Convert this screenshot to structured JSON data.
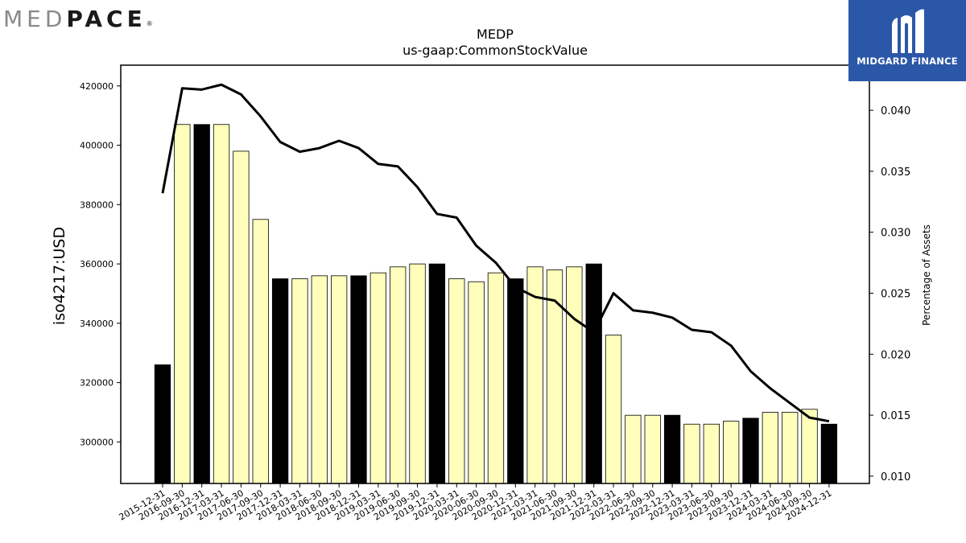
{
  "branding": {
    "left_logo_light": "MED",
    "left_logo_dark": "PACE",
    "left_logo_reg": "®",
    "right_logo_name": "MIDGARD FINANCE",
    "right_logo_bg": "#2b57a8"
  },
  "chart_data": {
    "type": "bar",
    "title": "MEDP",
    "subtitle": "us-gaap:CommonStockValue",
    "ylabel": "iso4217:USD",
    "y2label": "Percentage of Assets",
    "ylim": [
      286000,
      427000
    ],
    "y2lim": [
      0.0094,
      0.0437
    ],
    "yticks": [
      300000,
      320000,
      340000,
      360000,
      380000,
      400000,
      420000
    ],
    "y2ticks": [
      "0.010",
      "0.015",
      "0.020",
      "0.025",
      "0.030",
      "0.035",
      "0.040"
    ],
    "categories": [
      "2015-12-31",
      "2016-09-30",
      "2016-12-31",
      "2017-03-31",
      "2017-06-30",
      "2017-09-30",
      "2017-12-31",
      "2018-03-31",
      "2018-06-30",
      "2018-09-30",
      "2018-12-31",
      "2019-03-31",
      "2019-06-30",
      "2019-09-30",
      "2019-12-31",
      "2020-03-31",
      "2020-06-30",
      "2020-09-30",
      "2020-12-31",
      "2021-03-31",
      "2021-06-30",
      "2021-09-30",
      "2021-12-31",
      "2022-03-31",
      "2022-06-30",
      "2022-09-30",
      "2022-12-31",
      "2023-03-31",
      "2023-06-30",
      "2023-09-30",
      "2023-12-31",
      "2024-03-31",
      "2024-06-30",
      "2024-09-30",
      "2024-12-31"
    ],
    "values": [
      326000,
      407000,
      407000,
      407000,
      398000,
      375000,
      355000,
      355000,
      356000,
      356000,
      356000,
      357000,
      359000,
      360000,
      360000,
      355000,
      354000,
      357000,
      355000,
      359000,
      358000,
      359000,
      360000,
      336000,
      309000,
      309000,
      309000,
      306000,
      306000,
      307000,
      308000,
      310000,
      310000,
      311000,
      306000
    ],
    "line_values": [
      0.0332,
      0.0418,
      0.0417,
      0.0421,
      0.0413,
      0.0395,
      0.0374,
      0.0366,
      0.0369,
      0.0375,
      0.0369,
      0.0356,
      0.0354,
      0.0337,
      0.0315,
      0.0312,
      0.0289,
      0.0275,
      0.0255,
      0.0247,
      0.0244,
      0.0229,
      0.0218,
      0.025,
      0.0236,
      0.0234,
      0.023,
      0.022,
      0.0218,
      0.0207,
      0.0186,
      0.0172,
      0.016,
      0.0148,
      0.0145
    ],
    "highlight_indices": [
      0,
      2,
      6,
      10,
      14,
      18,
      22,
      26,
      30,
      34
    ],
    "colors": {
      "bar_fill": "#ffffbb",
      "bar_highlight": "#000000",
      "bar_edge": "#000000",
      "line": "#000000"
    },
    "grid": false
  }
}
